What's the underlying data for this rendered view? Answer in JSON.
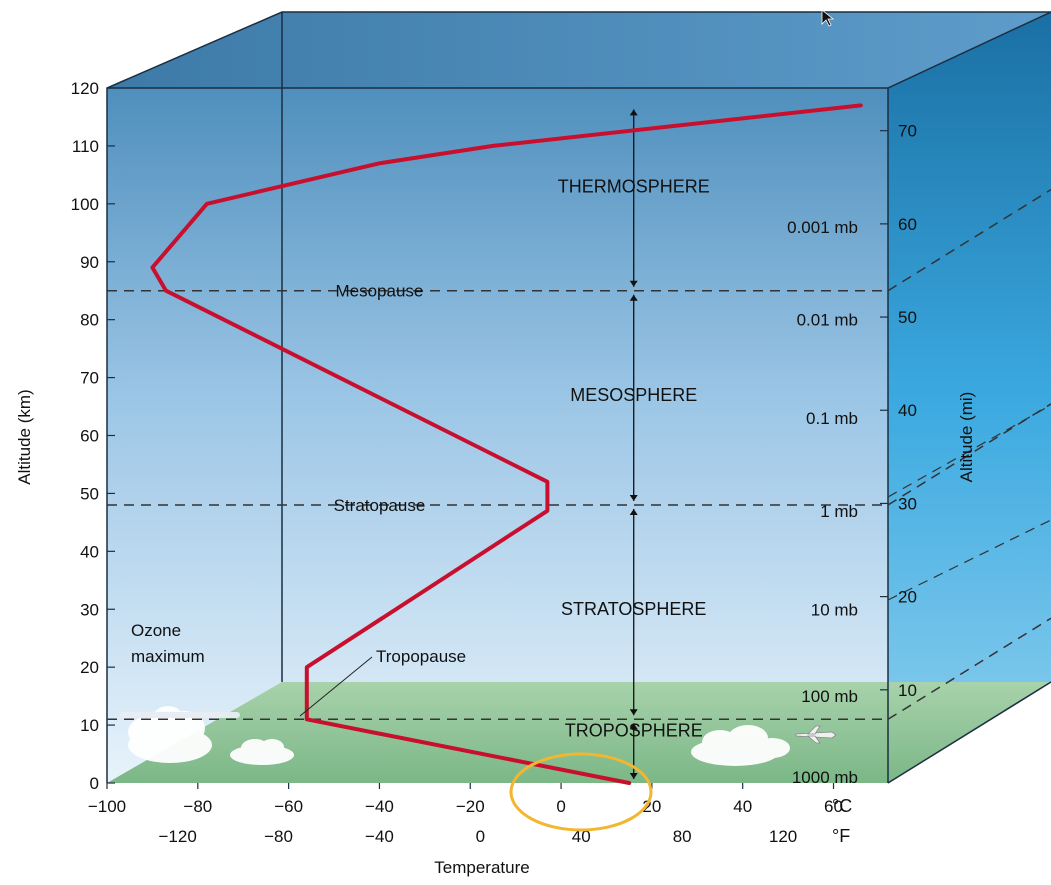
{
  "chart_data": {
    "type": "line",
    "xlabel": "Temperature",
    "ylabel_left": "Altitude (km)",
    "ylabel_right": "Altitude (mi)",
    "xlim_c": [
      -100,
      72
    ],
    "ylim_km": [
      0,
      120
    ],
    "x_unit_c": "°C",
    "x_unit_f": "°F",
    "celsius_ticks": [
      "−100",
      "−80",
      "−60",
      "−40",
      "−20",
      "0",
      "20",
      "40",
      "60"
    ],
    "celsius_values": [
      -100,
      -80,
      -60,
      -40,
      -20,
      0,
      20,
      40,
      60
    ],
    "fahrenheit_ticks": [
      "−120",
      "−80",
      "−40",
      "0",
      "40",
      "80",
      "120"
    ],
    "fahrenheit_values": [
      -120,
      -80,
      -40,
      0,
      40,
      80,
      120
    ],
    "km_ticks": [
      0,
      10,
      20,
      30,
      40,
      50,
      60,
      70,
      80,
      90,
      100,
      110,
      120
    ],
    "mi_ticks": [
      10,
      20,
      30,
      40,
      50,
      60,
      70
    ],
    "series": [
      {
        "color": "#c8102e",
        "points": [
          {
            "t": 15,
            "alt": 0
          },
          {
            "t": -56,
            "alt": 11
          },
          {
            "t": -56,
            "alt": 20
          },
          {
            "t": -3,
            "alt": 47
          },
          {
            "t": -3,
            "alt": 52
          },
          {
            "t": -87,
            "alt": 85
          },
          {
            "t": -90,
            "alt": 89
          },
          {
            "t": -78,
            "alt": 100
          },
          {
            "t": -40,
            "alt": 107
          },
          {
            "t": -15,
            "alt": 110
          },
          {
            "t": 66,
            "alt": 117
          }
        ]
      }
    ],
    "boundaries": [
      {
        "label": "Mesopause",
        "alt": 85
      },
      {
        "label": "Stratopause",
        "alt": 48
      },
      {
        "label": "Tropopause",
        "alt": 11
      }
    ],
    "layers": [
      {
        "label": "THERMOSPHERE",
        "alt": 102
      },
      {
        "label": "MESOSPHERE",
        "alt": 66
      },
      {
        "label": "STRATOSPHERE",
        "alt": 29
      },
      {
        "label": "TROPOSPHERE",
        "alt": 8
      }
    ],
    "pressures": [
      {
        "label": "0.001 mb",
        "alt": 96
      },
      {
        "label": "0.01 mb",
        "alt": 80
      },
      {
        "label": "0.1 mb",
        "alt": 63
      },
      {
        "label": "1 mb",
        "alt": 47
      },
      {
        "label": "10 mb",
        "alt": 30
      },
      {
        "label": "100 mb",
        "alt": 15
      },
      {
        "label": "1000 mb",
        "alt": 1
      }
    ],
    "annotations": {
      "ozone_line1": "Ozone",
      "ozone_line2": "maximum",
      "highlight_circle_around": "0 to 20 °C at surface"
    },
    "colors": {
      "sky_top": "#4f8fbd",
      "sky_bottom": "#e6f1f9",
      "ground": "#8fc49a",
      "right_face": "#2b9fd8",
      "profile_line": "#c8102e",
      "highlight_circle": "#f2b630"
    }
  }
}
